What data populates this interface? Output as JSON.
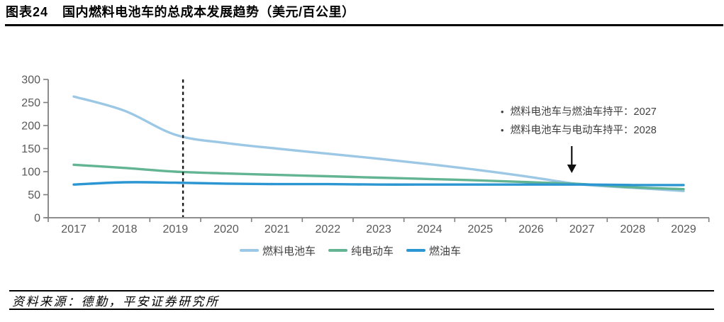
{
  "header": {
    "label": "图表24",
    "title": "国内燃料电池车的总成本发展趋势（美元/百公里）"
  },
  "chart_data": {
    "type": "line",
    "title": "国内燃料电池车的总成本发展趋势（美元/百公里）",
    "x": [
      2017,
      2018,
      2019,
      2020,
      2021,
      2022,
      2023,
      2024,
      2025,
      2026,
      2027,
      2028,
      2029
    ],
    "series": [
      {
        "name": "燃料电池车",
        "color": "#9CC8E5",
        "values": [
          263,
          232,
          180,
          162,
          150,
          139,
          128,
          116,
          103,
          88,
          72,
          65,
          58
        ]
      },
      {
        "name": "纯电动车",
        "color": "#63B493",
        "values": [
          115,
          108,
          100,
          96,
          93,
          90,
          87,
          84,
          81,
          77,
          73,
          66,
          62
        ]
      },
      {
        "name": "燃油车",
        "color": "#2B96D1",
        "values": [
          72,
          77,
          76,
          74,
          73,
          73,
          72,
          72,
          72,
          72,
          72,
          71,
          71
        ]
      }
    ],
    "ylim": [
      0,
      300
    ],
    "yticks": [
      0,
      50,
      100,
      150,
      200,
      250,
      300
    ],
    "xlabel": "",
    "ylabel": "",
    "grid": false,
    "legend_position": "bottom",
    "reference_line": {
      "style": "dashed-vertical",
      "x_year": 2019.15
    },
    "arrow": {
      "x_year": 2026.8
    },
    "annotations": [
      {
        "bullet": "•",
        "text": "燃料电池车与燃油车持平：2027"
      },
      {
        "bullet": "•",
        "text": "燃料电池车与电动车持平：2028"
      }
    ]
  },
  "footer": {
    "source": "资料来源：德勤，平安证券研究所"
  }
}
